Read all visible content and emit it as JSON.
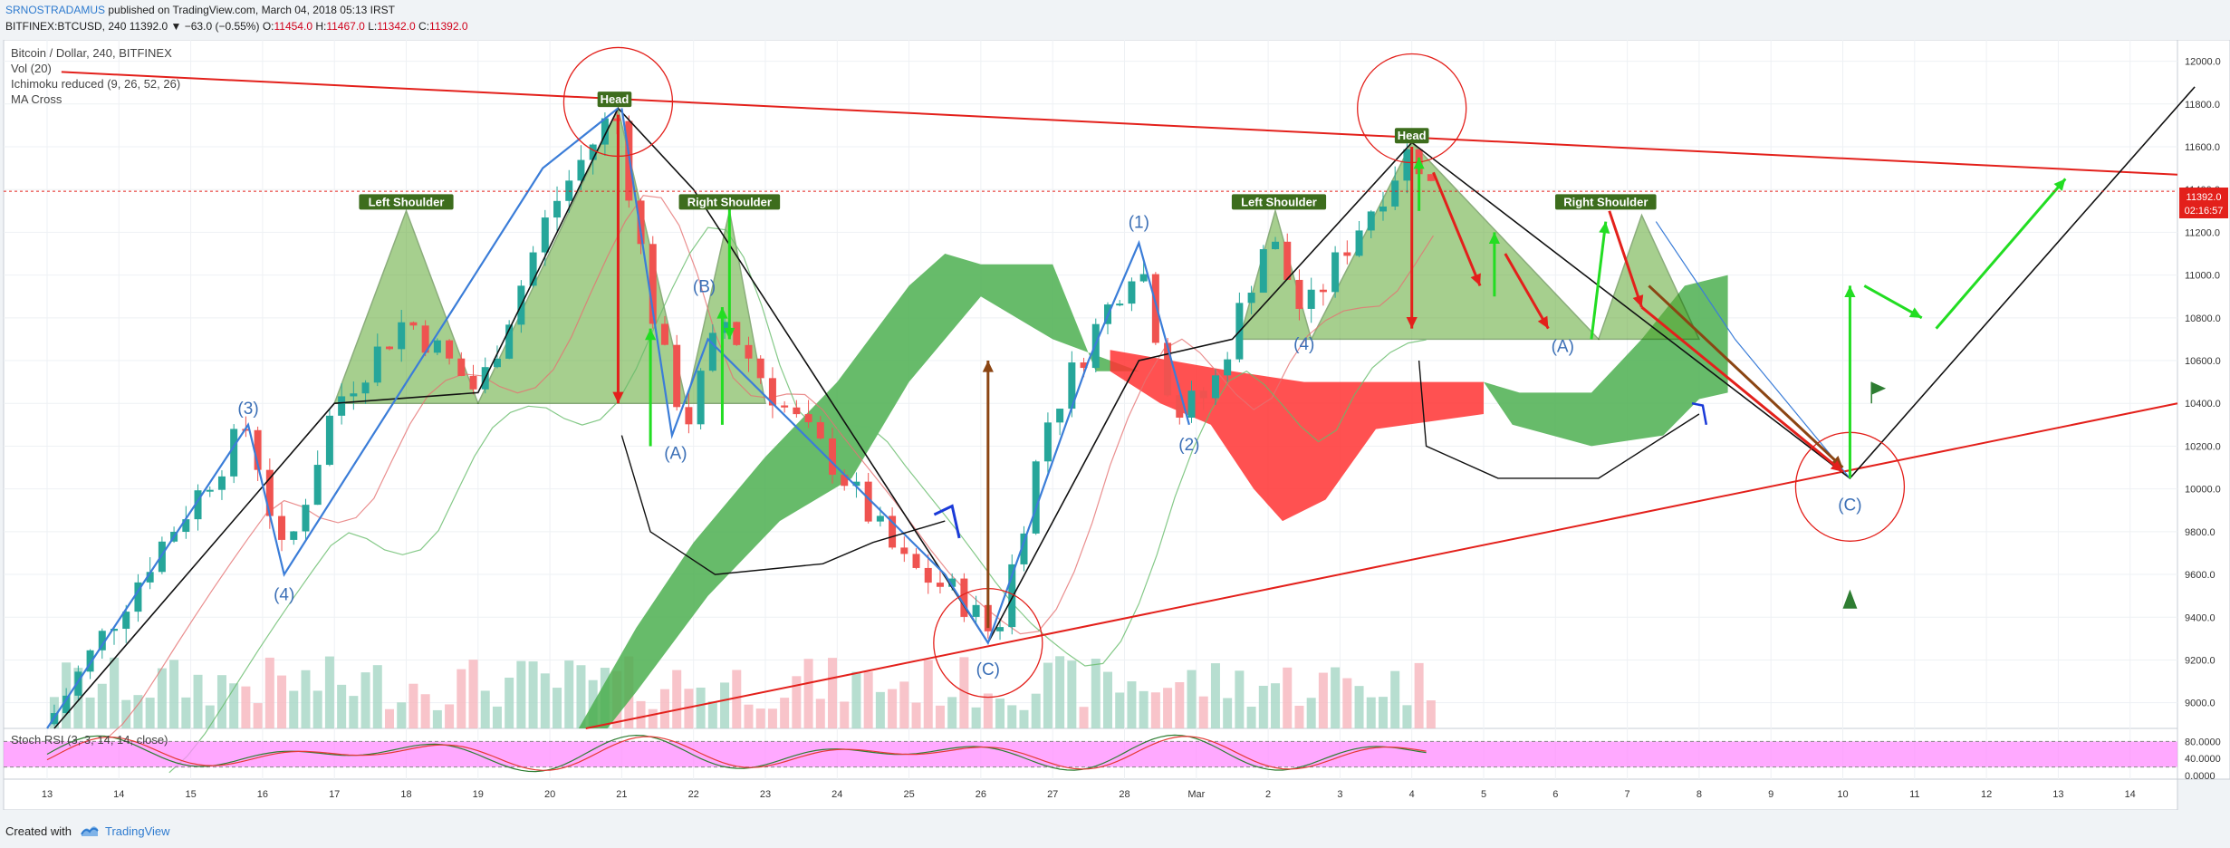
{
  "header": {
    "author": "SRNOSTRADAMUS",
    "published": "published on TradingView.com, March 04, 2018 05:13 IRST",
    "symbol": "BITFINEX:BTCUSD, 240",
    "change": "11392.0 ▼ −63.0 (−0.55%)",
    "open_label": "O:",
    "open": "11454.0",
    "high_label": "H:",
    "high": "11467.0",
    "low_label": "L:",
    "low": "11342.0",
    "close_label": "C:",
    "close": "11392.0"
  },
  "legend": {
    "title": "Bitcoin / Dollar, 240, BITFINEX",
    "vol": "Vol (20)",
    "ichimoku": "Ichimoku reduced (9, 26, 52, 26)",
    "ma": "MA Cross",
    "stoch": "Stoch RSI (3, 3, 14, 14, close)"
  },
  "price_tag": {
    "price": "11392.0",
    "countdown": "02:16:57"
  },
  "footer": {
    "created_with": "Created with",
    "brand": "TradingView"
  },
  "colors": {
    "up": "#26a69a",
    "down": "#ef5350",
    "cloud_bull": "#4caf50",
    "cloud_bear": "#ff3333",
    "stoch_band": "#ff8cff",
    "trend": "#e3201b",
    "wave": "#3b7dd8"
  },
  "chart_data": {
    "type": "candlestick",
    "title": "Bitcoin / Dollar, 240, BITFINEX",
    "y_ticks": [
      9000,
      9200,
      9400,
      9600,
      9800,
      10000,
      10200,
      10400,
      10600,
      10800,
      11000,
      11200,
      11400,
      11600,
      11800,
      12000
    ],
    "ylim": [
      8880,
      12100
    ],
    "x_ticks": [
      {
        "label": "13",
        "t": 0
      },
      {
        "label": "14",
        "t": 1
      },
      {
        "label": "15",
        "t": 2
      },
      {
        "label": "16",
        "t": 3
      },
      {
        "label": "17",
        "t": 4
      },
      {
        "label": "18",
        "t": 5
      },
      {
        "label": "19",
        "t": 6
      },
      {
        "label": "20",
        "t": 7
      },
      {
        "label": "21",
        "t": 8
      },
      {
        "label": "22",
        "t": 9
      },
      {
        "label": "23",
        "t": 10
      },
      {
        "label": "24",
        "t": 11
      },
      {
        "label": "25",
        "t": 12
      },
      {
        "label": "26",
        "t": 13
      },
      {
        "label": "27",
        "t": 14
      },
      {
        "label": "28",
        "t": 15
      },
      {
        "label": "Mar",
        "t": 16
      },
      {
        "label": "2",
        "t": 17
      },
      {
        "label": "3",
        "t": 18
      },
      {
        "label": "4",
        "t": 19
      },
      {
        "label": "5",
        "t": 20
      },
      {
        "label": "6",
        "t": 21
      },
      {
        "label": "7",
        "t": 22
      },
      {
        "label": "8",
        "t": 23
      },
      {
        "label": "9",
        "t": 24
      },
      {
        "label": "10",
        "t": 25
      },
      {
        "label": "11",
        "t": 26
      },
      {
        "label": "12",
        "t": 27
      },
      {
        "label": "13",
        "t": 28
      },
      {
        "label": "14",
        "t": 29
      }
    ],
    "stoch_ticks": [
      "80.0000",
      "40.0000",
      "0.0000"
    ],
    "last_price": 11392.0,
    "annotations": {
      "head_labels": [
        "Head",
        "Head"
      ],
      "shoulder_labels": [
        "Left Shoulder",
        "Right Shoulder",
        "Left Shoulder",
        "Right Shoulder"
      ],
      "wave_labels": [
        "(3)",
        "(4)",
        "(A)",
        "(B)",
        "(C)",
        "(1)",
        "(2)",
        "(4)",
        "(A)",
        "(C)"
      ]
    },
    "series": [
      {
        "name": "price path",
        "points": [
          {
            "t": 0.0,
            "p": 8900
          },
          {
            "t": 1.5,
            "p": 9700
          },
          {
            "t": 2.8,
            "p": 10300
          },
          {
            "t": 3.3,
            "p": 9650
          },
          {
            "t": 4.0,
            "p": 10400
          },
          {
            "t": 5.0,
            "p": 10800
          },
          {
            "t": 6.0,
            "p": 10450
          },
          {
            "t": 7.0,
            "p": 11300
          },
          {
            "t": 7.9,
            "p": 11780
          },
          {
            "t": 8.5,
            "p": 10700
          },
          {
            "t": 8.9,
            "p": 10300
          },
          {
            "t": 9.4,
            "p": 10800
          },
          {
            "t": 10.2,
            "p": 10400
          },
          {
            "t": 11.0,
            "p": 10100
          },
          {
            "t": 11.9,
            "p": 9650
          },
          {
            "t": 12.7,
            "p": 9500
          },
          {
            "t": 13.2,
            "p": 9300
          },
          {
            "t": 13.9,
            "p": 10300
          },
          {
            "t": 14.6,
            "p": 10750
          },
          {
            "t": 15.2,
            "p": 11100
          },
          {
            "t": 15.7,
            "p": 10350
          },
          {
            "t": 16.2,
            "p": 10450
          },
          {
            "t": 17.0,
            "p": 11200
          },
          {
            "t": 17.5,
            "p": 10800
          },
          {
            "t": 18.2,
            "p": 11200
          },
          {
            "t": 19.0,
            "p": 11600
          },
          {
            "t": 19.3,
            "p": 11392
          }
        ]
      }
    ]
  }
}
